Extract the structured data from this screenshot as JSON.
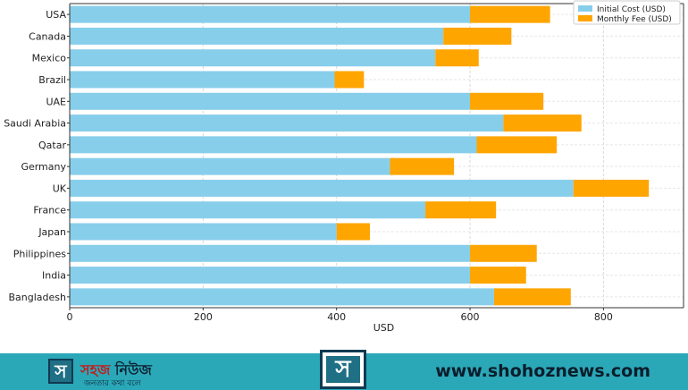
{
  "chart_data": {
    "type": "bar",
    "orientation": "horizontal",
    "stacked": true,
    "categories": [
      "USA",
      "Canada",
      "Mexico",
      "Brazil",
      "UAE",
      "Saudi Arabia",
      "Qatar",
      "Germany",
      "UK",
      "France",
      "Japan",
      "Philippines",
      "India",
      "Bangladesh"
    ],
    "series": [
      {
        "name": "Initial Cost (USD)",
        "color": "#87ceeb",
        "values": [
          600,
          560,
          548,
          397,
          600,
          650,
          610,
          480,
          755,
          533,
          400,
          600,
          600,
          636
        ]
      },
      {
        "name": "Monthly Fee (USD)",
        "color": "#ffa500",
        "values": [
          120,
          102,
          65,
          44,
          110,
          117,
          120,
          96,
          113,
          106,
          50,
          100,
          84,
          115
        ]
      }
    ],
    "xlabel": "USD",
    "ylabel": "",
    "xlim": [
      0,
      920
    ],
    "xticks": [
      0,
      200,
      400,
      600,
      800
    ],
    "grid": true,
    "legend_position": "top-right"
  },
  "footer": {
    "brand_main": "সহজ",
    "brand_accent": "নিউজ",
    "tagline": "জনতার কথা বলে",
    "logo_glyph": "স",
    "website": "www.shohoznews.com"
  }
}
